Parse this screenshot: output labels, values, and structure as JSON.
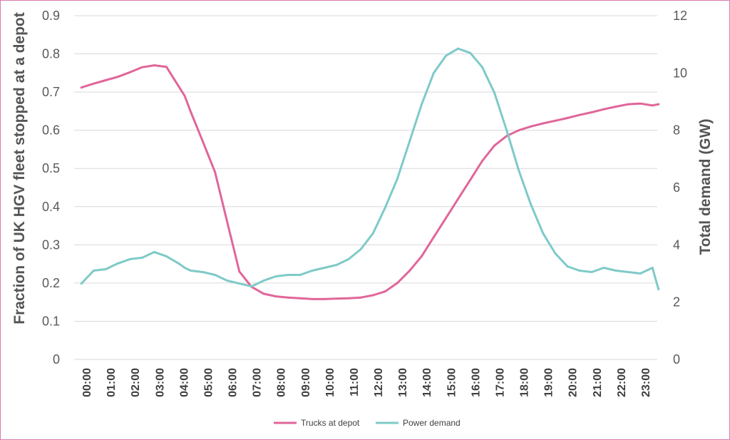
{
  "chart_data": {
    "type": "line",
    "title": "",
    "ylabel_left": "Fraction of UK HGV fleet stopped at a depot",
    "ylabel_right": "Total demand (GW)",
    "ylim_left": [
      0,
      0.9
    ],
    "ylim_right": [
      0,
      12
    ],
    "y_ticks_left": [
      "0",
      "0.1",
      "0.2",
      "0.3",
      "0.4",
      "0.5",
      "0.6",
      "0.7",
      "0.8",
      "0.9"
    ],
    "y_ticks_right": [
      "0",
      "2",
      "4",
      "6",
      "8",
      "10",
      "12"
    ],
    "x_tick_labels": [
      "00:00",
      "01:00",
      "02:00",
      "03:00",
      "04:00",
      "05:00",
      "06:00",
      "07:00",
      "08:00",
      "09:00",
      "10:00",
      "11:00",
      "12:00",
      "13:00",
      "14:00",
      "15:00",
      "16:00",
      "17:00",
      "18:00",
      "19:00",
      "20:00",
      "21:00",
      "22:00",
      "23:00"
    ],
    "x_hours": [
      0,
      0.5,
      1,
      1.5,
      2,
      2.5,
      3,
      3.5,
      4,
      4.25,
      4.5,
      5,
      5.5,
      6,
      6.5,
      7,
      7.5,
      8,
      8.5,
      9,
      9.5,
      10,
      10.5,
      11,
      11.5,
      12,
      12.5,
      13,
      13.5,
      14,
      14.5,
      15,
      15.5,
      16,
      16.5,
      17,
      17.5,
      18,
      18.5,
      19,
      19.5,
      20,
      20.5,
      21,
      21.5,
      22,
      22.5,
      23,
      23.5,
      23.75
    ],
    "grid": true,
    "legend_position": "bottom",
    "series": [
      {
        "name": "Trucks at depot",
        "axis": "left",
        "color": "#e0669a",
        "values": [
          0.712,
          0.722,
          0.731,
          0.74,
          0.752,
          0.765,
          0.77,
          0.766,
          0.715,
          0.69,
          0.648,
          0.57,
          0.49,
          0.36,
          0.23,
          0.19,
          0.172,
          0.165,
          0.162,
          0.16,
          0.158,
          0.158,
          0.159,
          0.16,
          0.162,
          0.168,
          0.178,
          0.2,
          0.232,
          0.27,
          0.32,
          0.37,
          0.42,
          0.47,
          0.52,
          0.56,
          0.585,
          0.6,
          0.61,
          0.618,
          0.625,
          0.632,
          0.64,
          0.647,
          0.655,
          0.662,
          0.668,
          0.67,
          0.665,
          0.668
        ]
      },
      {
        "name": "Power demand",
        "axis": "right",
        "color": "#7ecac8",
        "values": [
          2.65,
          3.1,
          3.15,
          3.35,
          3.5,
          3.55,
          3.75,
          3.6,
          3.35,
          3.2,
          3.1,
          3.05,
          2.95,
          2.75,
          2.65,
          2.55,
          2.75,
          2.9,
          2.95,
          2.95,
          3.1,
          3.2,
          3.3,
          3.5,
          3.85,
          4.4,
          5.3,
          6.3,
          7.6,
          8.9,
          10.0,
          10.6,
          10.85,
          10.7,
          10.2,
          9.3,
          8.0,
          6.6,
          5.4,
          4.4,
          3.7,
          3.25,
          3.1,
          3.05,
          3.2,
          3.1,
          3.05,
          3.0,
          3.2,
          2.45
        ]
      }
    ]
  }
}
